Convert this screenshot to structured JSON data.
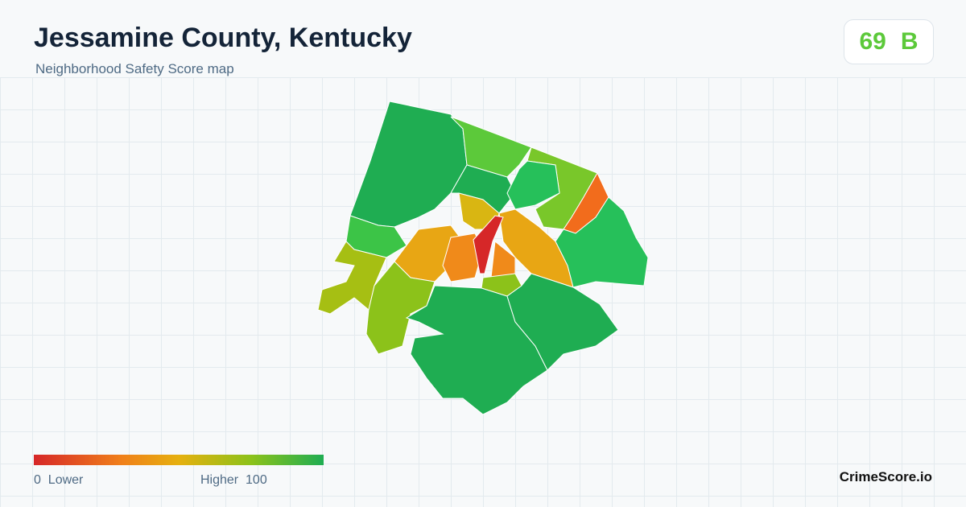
{
  "header": {
    "title": "Jessamine County, Kentucky",
    "subtitle": "Neighborhood Safety Score map"
  },
  "score": {
    "value": 69,
    "grade": "B"
  },
  "legend": {
    "min": 0,
    "min_label": "Lower",
    "max_label": "Higher",
    "max": 100
  },
  "brand": "CrimeScore.io"
}
